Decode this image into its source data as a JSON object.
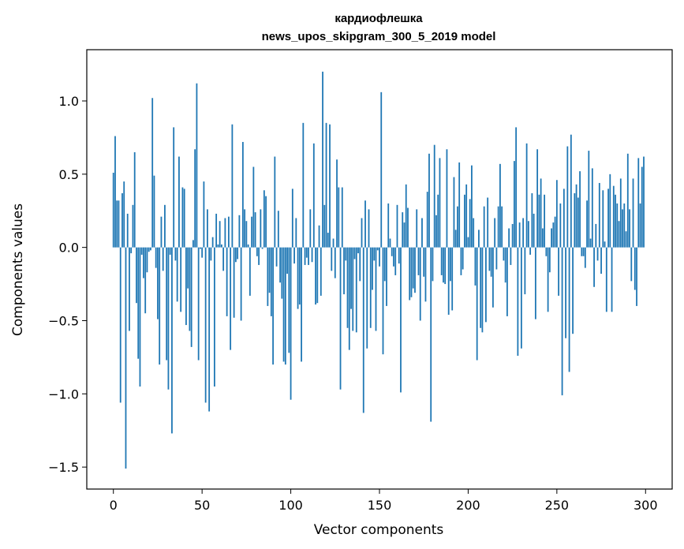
{
  "chart_data": {
    "type": "bar",
    "title_line1": "кардиофлешка",
    "title_line2": "news_upos_skipgram_300_5_2019 model",
    "xlabel": "Vector components",
    "ylabel": "Components values",
    "xlim": [
      -15,
      315
    ],
    "ylim": [
      -1.65,
      1.35
    ],
    "xticks": [
      0,
      50,
      100,
      150,
      200,
      250,
      300
    ],
    "yticks": [
      -1.5,
      -1.0,
      -0.5,
      0.0,
      0.5,
      1.0
    ],
    "ytick_labels": [
      "−1.5",
      "−1.0",
      "−0.5",
      "0.0",
      "0.5",
      "1.0"
    ],
    "bar_color": "#1f77b4",
    "x_start": 0,
    "values": [
      0.51,
      0.76,
      0.32,
      0.32,
      -1.06,
      0.37,
      0.45,
      -1.51,
      0.23,
      -0.57,
      -0.04,
      0.29,
      0.65,
      -0.38,
      -0.76,
      -0.95,
      -0.05,
      -0.21,
      -0.45,
      -0.17,
      -0.03,
      -0.02,
      1.02,
      0.49,
      -0.14,
      -0.49,
      -0.8,
      0.21,
      -0.16,
      0.29,
      -0.77,
      -0.97,
      -0.05,
      -1.27,
      0.82,
      -0.09,
      -0.37,
      0.62,
      -0.44,
      0.41,
      0.4,
      -0.53,
      -0.28,
      -0.57,
      -0.68,
      0.05,
      0.67,
      1.12,
      -0.77,
      -0.01,
      -0.07,
      0.45,
      -1.06,
      0.26,
      -1.12,
      -0.09,
      0.07,
      -0.95,
      0.23,
      0.02,
      0.18,
      0.02,
      -0.16,
      0.2,
      -0.47,
      0.21,
      -0.7,
      0.84,
      -0.48,
      -0.1,
      -0.08,
      0.22,
      -0.5,
      0.72,
      0.26,
      0.18,
      0.02,
      -0.33,
      0.21,
      0.55,
      0.24,
      -0.06,
      -0.12,
      0.26,
      -0.01,
      0.39,
      0.35,
      -0.4,
      -0.31,
      -0.47,
      -0.8,
      0.62,
      -0.13,
      0.25,
      -0.24,
      -0.35,
      -0.78,
      -0.8,
      -0.18,
      -0.72,
      -1.04,
      0.4,
      -0.11,
      0.2,
      -0.42,
      -0.39,
      -0.78,
      0.85,
      -0.12,
      -0.07,
      -0.12,
      0.26,
      -0.1,
      0.71,
      -0.39,
      -0.38,
      0.15,
      -0.33,
      1.2,
      0.29,
      0.85,
      0.1,
      0.84,
      -0.16,
      0.06,
      -0.21,
      0.6,
      0.41,
      -0.97,
      0.41,
      -0.32,
      -0.09,
      -0.55,
      -0.7,
      -0.42,
      -0.57,
      -0.08,
      -0.58,
      -0.04,
      -0.23,
      0.2,
      -1.13,
      0.32,
      -0.69,
      0.26,
      -0.55,
      -0.29,
      -0.09,
      -0.57,
      -0.02,
      -0.13,
      1.06,
      -0.73,
      -0.23,
      -0.4,
      0.3,
      0.06,
      -0.06,
      -0.13,
      -0.19,
      0.29,
      -0.11,
      -0.99,
      0.24,
      0.17,
      0.43,
      0.27,
      -0.36,
      -0.34,
      -0.28,
      -0.31,
      0.26,
      -0.19,
      -0.5,
      0.2,
      -0.2,
      -0.37,
      0.38,
      0.64,
      -1.19,
      -0.23,
      0.7,
      0.22,
      0.36,
      0.61,
      -0.19,
      -0.24,
      -0.25,
      0.67,
      -0.46,
      -0.23,
      -0.43,
      0.48,
      0.12,
      0.28,
      0.58,
      -0.19,
      -0.15,
      0.36,
      0.43,
      0.07,
      0.33,
      0.56,
      0.2,
      -0.26,
      -0.77,
      0.12,
      -0.55,
      -0.58,
      0.28,
      -0.51,
      0.34,
      -0.16,
      -0.2,
      -0.41,
      0.2,
      -0.15,
      0.28,
      0.57,
      0.28,
      -0.09,
      -0.24,
      -0.47,
      0.13,
      -0.12,
      0.16,
      0.59,
      0.82,
      -0.74,
      0.17,
      -0.69,
      0.2,
      -0.32,
      0.71,
      0.18,
      -0.05,
      0.37,
      0.23,
      -0.49,
      0.67,
      0.36,
      0.47,
      0.13,
      0.36,
      -0.06,
      -0.44,
      -0.17,
      0.13,
      0.17,
      0.21,
      0.46,
      -0.33,
      0.3,
      -1.01,
      0.4,
      -0.62,
      0.69,
      -0.85,
      0.77,
      -0.59,
      0.37,
      0.43,
      0.34,
      0.52,
      -0.06,
      -0.06,
      -0.14,
      0.32,
      0.66,
      0.06,
      0.54,
      -0.27,
      0.16,
      -0.09,
      0.44,
      -0.18,
      0.39,
      0.04,
      -0.44,
      0.4,
      0.5,
      -0.44,
      0.42,
      0.36,
      0.3,
      0.18,
      0.47,
      0.26,
      0.3,
      0.11,
      0.64,
      0.26,
      -0.23,
      0.47,
      -0.29,
      -0.4,
      0.61,
      0.3,
      0.55,
      0.62
    ]
  }
}
